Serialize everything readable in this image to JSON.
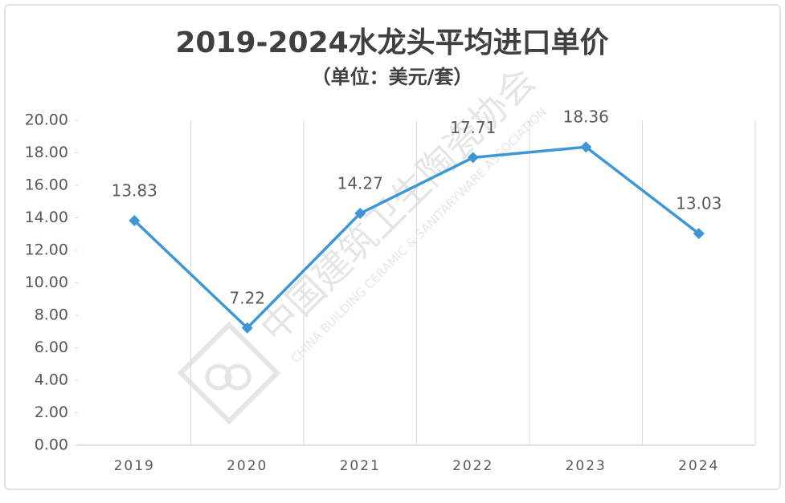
{
  "chart_data": {
    "type": "line",
    "title": "2019-2024水龙头平均进口单价",
    "subtitle": "（单位：美元/套）",
    "categories": [
      "2019",
      "2020",
      "2021",
      "2022",
      "2023",
      "2024"
    ],
    "series": [
      {
        "name": "水龙头平均进口单价",
        "color": "#3d97d6",
        "values": [
          13.83,
          7.22,
          14.27,
          17.71,
          18.36,
          13.03
        ]
      }
    ],
    "ylim": [
      0,
      20
    ],
    "yticks": [
      {
        "value": 0,
        "label": "0.00"
      },
      {
        "value": 2,
        "label": "2.00"
      },
      {
        "value": 4,
        "label": "4.00"
      },
      {
        "value": 6,
        "label": "6.00"
      },
      {
        "value": 8,
        "label": "8.00"
      },
      {
        "value": 10,
        "label": "10.00"
      },
      {
        "value": 12,
        "label": "12.00"
      },
      {
        "value": 14,
        "label": "14.00"
      },
      {
        "value": 16,
        "label": "16.00"
      },
      {
        "value": 18,
        "label": "18.00"
      },
      {
        "value": 20,
        "label": "20.00"
      }
    ],
    "grid": "category",
    "watermark": {
      "cn": "中国建筑卫生陶瓷协会",
      "en": "CHINA BUILDING CERAMIC & SANITARYWARE ASSOCIATION"
    }
  }
}
